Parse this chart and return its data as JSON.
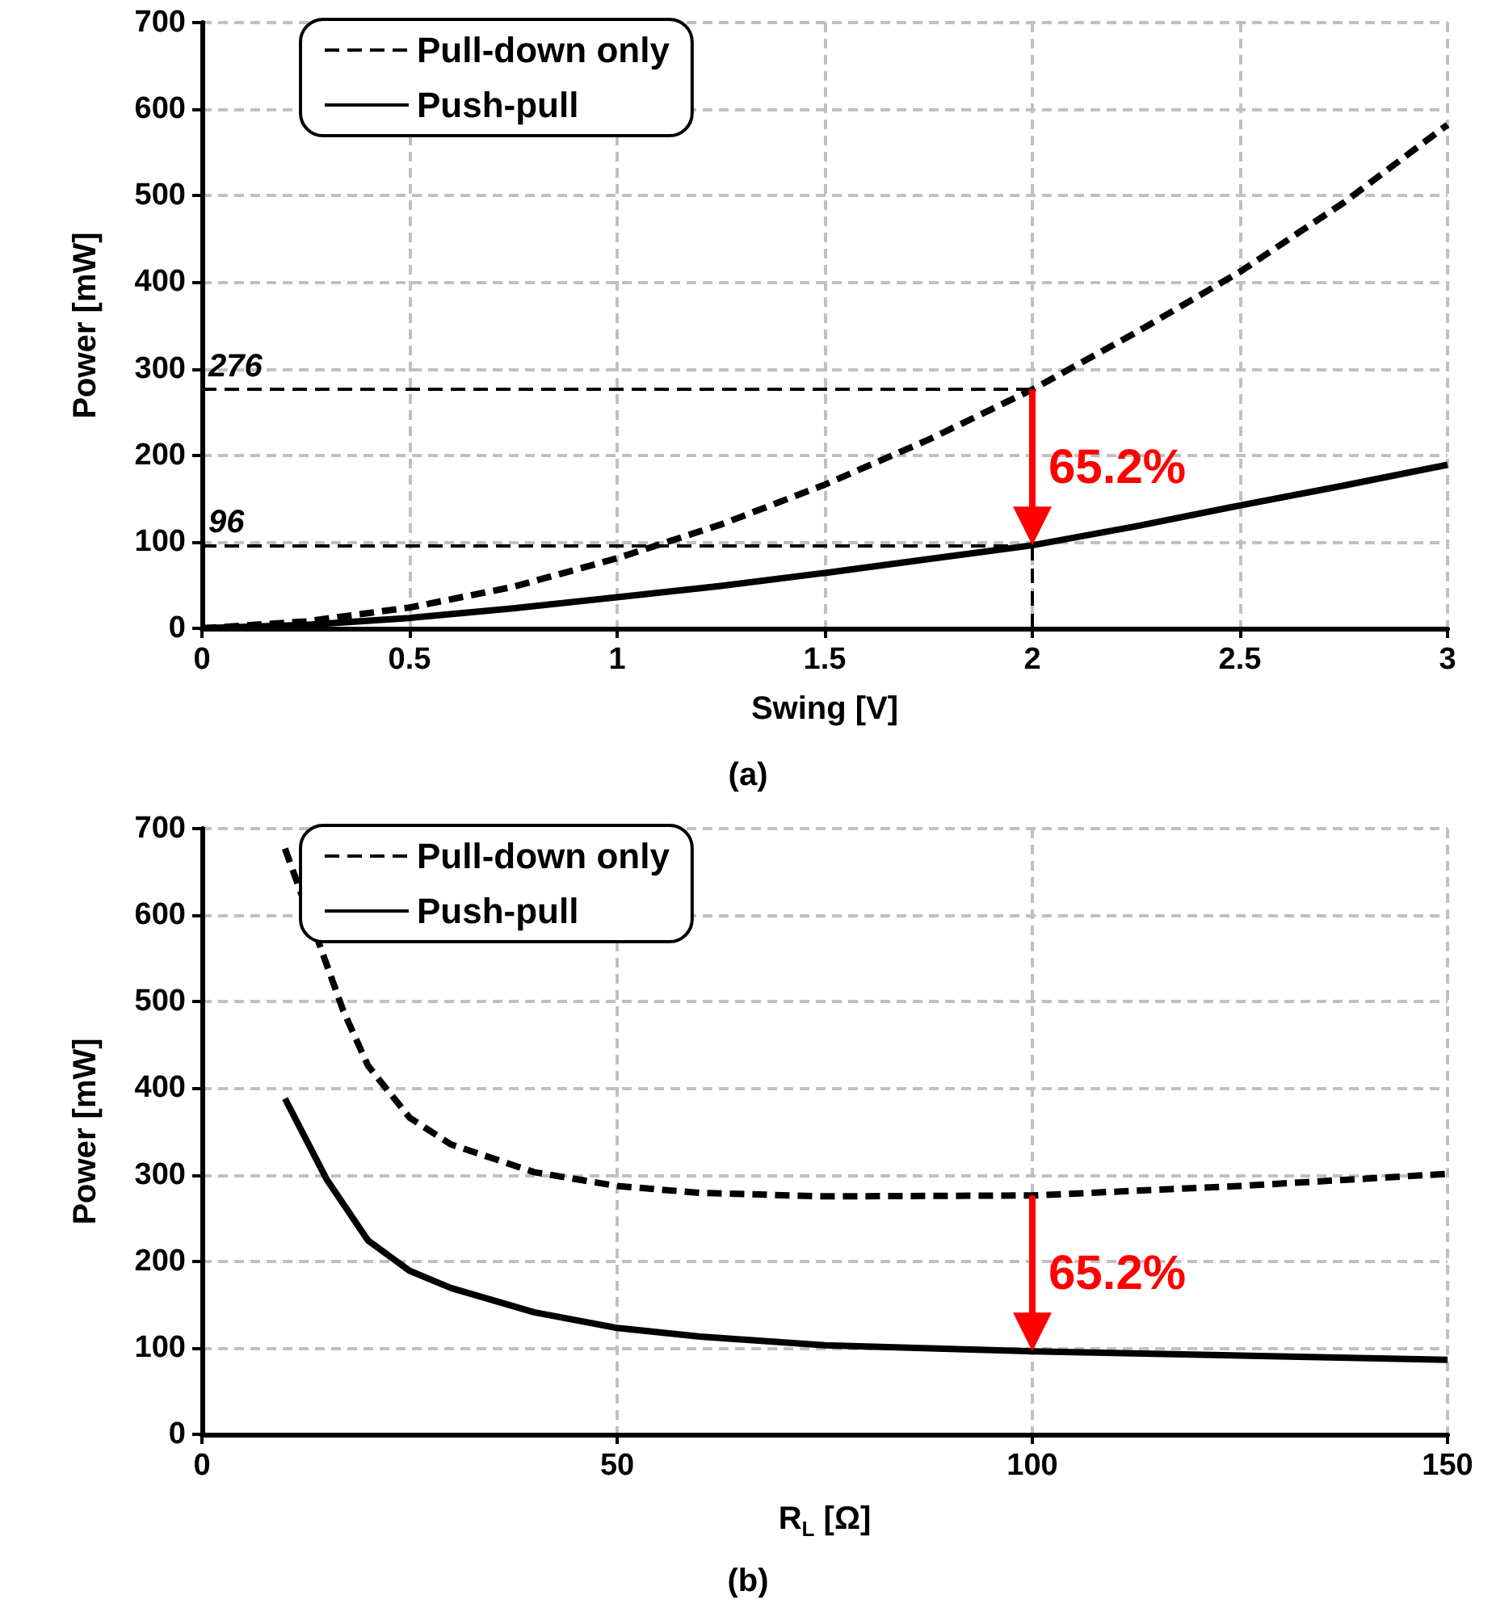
{
  "chart_data": [
    {
      "type": "line",
      "title": "(a)",
      "xlabel": "Swing [V]",
      "ylabel": "Power [mW]",
      "xlim": [
        0,
        3
      ],
      "ylim": [
        0,
        700
      ],
      "xticks": [
        0,
        0.5,
        1,
        1.5,
        2,
        2.5,
        3
      ],
      "yticks": [
        0,
        100,
        200,
        300,
        400,
        500,
        600,
        700
      ],
      "grid": true,
      "legend": "top left",
      "marker": "none",
      "series": [
        {
          "name": "Pull-down only",
          "color": "#000000",
          "line_style": "dashed",
          "x": [
            0,
            0.25,
            0.5,
            0.75,
            1,
            1.25,
            1.5,
            1.75,
            2,
            2.25,
            2.5,
            2.75,
            3
          ],
          "values": [
            0,
            8,
            24,
            48,
            81,
            120,
            166,
            218,
            276,
            342,
            412,
            492,
            582
          ]
        },
        {
          "name": "Push-pull",
          "color": "#000000",
          "line_style": "solid",
          "x": [
            0,
            0.25,
            0.5,
            0.75,
            1,
            1.25,
            1.5,
            1.75,
            2,
            2.25,
            2.5,
            2.75,
            3
          ],
          "values": [
            0,
            4,
            12,
            23,
            36,
            49,
            64,
            80,
            96,
            118,
            142,
            165,
            189
          ]
        }
      ],
      "ref_lines": [
        {
          "axis": "y",
          "value": 276,
          "label": "276",
          "color": "#000000",
          "line_style": "dashed"
        },
        {
          "axis": "y",
          "value": 96,
          "label": "96",
          "color": "#000000",
          "line_style": "dashed"
        },
        {
          "axis": "x",
          "value": 2,
          "label": null,
          "color": "#000000",
          "line_style": "dashed"
        }
      ],
      "annotations": [
        {
          "text": "65.2%",
          "x": 2,
          "y": 96
        }
      ]
    },
    {
      "type": "line",
      "title": "(b)",
      "xlabel": "R$_{L}$ [Ω]",
      "ylabel": "Power [mW]",
      "xlim": [
        0,
        150
      ],
      "ylim": [
        0,
        700
      ],
      "xticks": [
        0,
        50,
        100,
        150
      ],
      "yticks": [
        0,
        100,
        200,
        300,
        400,
        500,
        600,
        700
      ],
      "grid": true,
      "legend": "top left",
      "marker": "none",
      "series": [
        {
          "name": "Pull-down only",
          "color": "#000000",
          "line_style": "dashed",
          "x": [
            10,
            17,
            20,
            25,
            30,
            40,
            50,
            60,
            75,
            100,
            125,
            150
          ],
          "values": [
            677,
            490,
            426,
            366,
            335,
            303,
            287,
            279,
            275,
            276,
            287,
            301
          ]
        },
        {
          "name": "Push-pull",
          "color": "#000000",
          "line_style": "solid",
          "x": [
            10,
            15,
            20,
            25,
            30,
            40,
            50,
            60,
            75,
            100,
            125,
            150
          ],
          "values": [
            388,
            295,
            224,
            189,
            169,
            141,
            123,
            113,
            103,
            96,
            91,
            86
          ]
        }
      ],
      "annotations": [
        {
          "text": "65.2%",
          "x": 100,
          "y": 96
        }
      ]
    }
  ]
}
